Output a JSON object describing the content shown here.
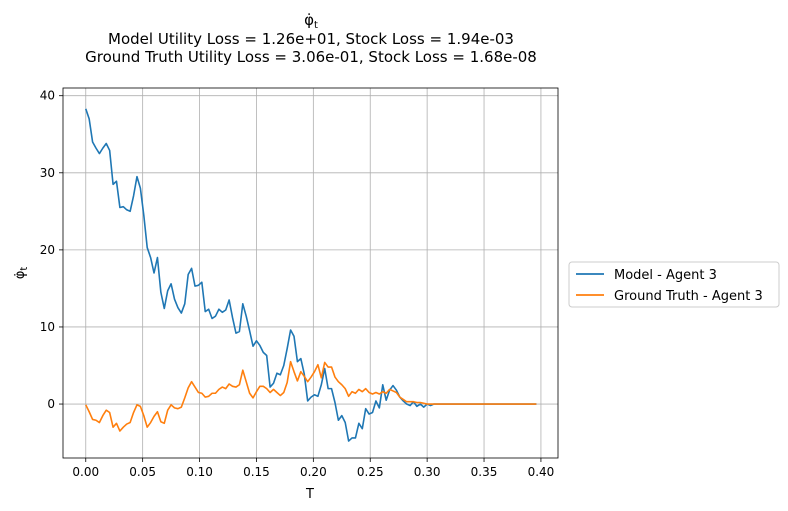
{
  "chart_data": {
    "type": "line",
    "title": {
      "main": "φ̇",
      "main_sub": "t",
      "line2": "Model Utility Loss = 1.26e+01, Stock Loss = 1.94e-03",
      "line3": "Ground Truth Utility Loss = 3.06e-01, Stock Loss = 1.68e-08"
    },
    "xlabel": "T",
    "ylabel": "φ̇",
    "ylabel_sub": "t",
    "xlim": [
      -0.02,
      0.415
    ],
    "ylim": [
      -7,
      41
    ],
    "xticks": [
      0.0,
      0.05,
      0.1,
      0.15,
      0.2,
      0.25,
      0.3,
      0.35,
      0.4
    ],
    "xtick_labels": [
      "0.00",
      "0.05",
      "0.10",
      "0.15",
      "0.20",
      "0.25",
      "0.30",
      "0.35",
      "0.40"
    ],
    "yticks": [
      0,
      10,
      20,
      30,
      40
    ],
    "ytick_labels": [
      "0",
      "10",
      "20",
      "30",
      "40"
    ],
    "grid": true,
    "legend_position": "right, outside",
    "x": [
      0.0,
      0.003,
      0.006,
      0.009,
      0.012,
      0.015,
      0.018,
      0.021,
      0.024,
      0.027,
      0.03,
      0.033,
      0.036,
      0.039,
      0.042,
      0.045,
      0.048,
      0.051,
      0.054,
      0.057,
      0.06,
      0.063,
      0.066,
      0.069,
      0.072,
      0.075,
      0.078,
      0.081,
      0.084,
      0.087,
      0.09,
      0.093,
      0.096,
      0.099,
      0.102,
      0.105,
      0.108,
      0.111,
      0.114,
      0.117,
      0.12,
      0.123,
      0.126,
      0.129,
      0.132,
      0.135,
      0.138,
      0.141,
      0.144,
      0.147,
      0.15,
      0.153,
      0.156,
      0.159,
      0.162,
      0.165,
      0.168,
      0.171,
      0.174,
      0.177,
      0.18,
      0.183,
      0.186,
      0.189,
      0.192,
      0.195,
      0.198,
      0.201,
      0.204,
      0.207,
      0.21,
      0.213,
      0.216,
      0.219,
      0.222,
      0.225,
      0.228,
      0.231,
      0.234,
      0.237,
      0.24,
      0.243,
      0.246,
      0.249,
      0.252,
      0.255,
      0.258,
      0.261,
      0.264,
      0.267,
      0.27,
      0.273,
      0.276,
      0.279,
      0.282,
      0.285,
      0.288,
      0.291,
      0.294,
      0.297,
      0.3,
      0.303,
      0.306,
      0.309,
      0.312,
      0.315,
      0.318,
      0.321,
      0.324,
      0.327,
      0.33,
      0.333,
      0.336,
      0.339,
      0.342,
      0.345,
      0.348,
      0.351,
      0.354,
      0.357,
      0.36,
      0.363,
      0.366,
      0.369,
      0.372,
      0.375,
      0.378,
      0.381,
      0.384,
      0.387,
      0.39,
      0.393,
      0.396
    ],
    "series": [
      {
        "name": "Model - Agent 3",
        "color": "#1f77b4",
        "values": [
          38.3,
          37.0,
          34.0,
          33.2,
          32.5,
          33.2,
          33.8,
          32.9,
          28.5,
          28.9,
          25.5,
          25.6,
          25.2,
          25.0,
          27.0,
          29.5,
          28.0,
          24.5,
          20.3,
          19.0,
          17.0,
          19.0,
          14.5,
          12.4,
          14.7,
          15.6,
          13.6,
          12.5,
          11.8,
          13.0,
          16.8,
          17.6,
          15.3,
          15.4,
          15.8,
          12.0,
          12.3,
          11.1,
          11.4,
          12.3,
          11.9,
          12.2,
          13.5,
          11.2,
          9.2,
          9.4,
          13.0,
          11.4,
          9.5,
          7.5,
          8.2,
          7.6,
          6.7,
          6.3,
          2.2,
          2.7,
          4.0,
          3.8,
          5.0,
          7.2,
          9.6,
          8.8,
          5.5,
          5.9,
          3.9,
          0.4,
          0.9,
          1.2,
          1.0,
          2.5,
          4.6,
          2.0,
          2.0,
          0.2,
          -2.1,
          -1.5,
          -2.4,
          -4.8,
          -4.4,
          -4.4,
          -2.5,
          -3.2,
          -0.6,
          -1.3,
          -1.1,
          0.4,
          -0.5,
          2.5,
          0.5,
          1.8,
          2.4,
          1.8,
          0.9,
          0.4,
          0.0,
          -0.2,
          0.3,
          -0.3,
          0.0,
          -0.4,
          0.0,
          -0.2,
          0.0,
          0.0,
          0.0,
          0.0,
          0.0,
          0.0,
          0.0,
          0.0,
          0.0,
          0.0,
          0.0,
          0.0,
          0.0,
          0.0,
          0.0,
          0.0,
          0.0,
          0.0,
          0.0,
          0.0,
          0.0,
          0.0,
          0.0,
          0.0,
          0.0,
          0.0,
          0.0,
          0.0,
          0.0,
          0.0,
          0.0
        ]
      },
      {
        "name": "Ground Truth - Agent 3",
        "color": "#ff7f0e",
        "values": [
          -0.1,
          -1.0,
          -2.0,
          -2.1,
          -2.4,
          -1.5,
          -0.8,
          -1.1,
          -3.0,
          -2.5,
          -3.5,
          -3.0,
          -2.6,
          -2.4,
          -1.1,
          -0.1,
          -0.3,
          -1.5,
          -3.0,
          -2.4,
          -1.6,
          -1.0,
          -2.3,
          -2.5,
          -0.8,
          -0.1,
          -0.5,
          -0.6,
          -0.4,
          0.8,
          2.1,
          2.9,
          2.2,
          1.5,
          1.4,
          0.9,
          1.0,
          1.4,
          1.4,
          1.9,
          2.2,
          2.0,
          2.6,
          2.3,
          2.2,
          2.5,
          4.4,
          2.9,
          1.4,
          0.8,
          1.6,
          2.3,
          2.3,
          2.0,
          1.5,
          1.9,
          1.5,
          1.1,
          1.5,
          2.8,
          5.5,
          4.2,
          3.0,
          4.2,
          3.6,
          2.9,
          3.5,
          4.2,
          5.1,
          3.4,
          5.4,
          4.8,
          4.8,
          3.5,
          2.9,
          2.5,
          2.0,
          1.0,
          1.6,
          1.4,
          1.9,
          1.6,
          2.0,
          1.5,
          1.3,
          1.5,
          1.3,
          1.6,
          1.4,
          1.9,
          1.7,
          1.5,
          0.9,
          0.6,
          0.3,
          0.3,
          0.3,
          0.2,
          0.2,
          0.1,
          0.0,
          0.0,
          0.0,
          0.0,
          0.0,
          0.0,
          0.0,
          0.0,
          0.0,
          0.0,
          0.0,
          0.0,
          0.0,
          0.0,
          0.0,
          0.0,
          0.0,
          0.0,
          0.0,
          0.0,
          0.0,
          0.0,
          0.0,
          0.0,
          0.0,
          0.0,
          0.0,
          0.0,
          0.0,
          0.0,
          0.0,
          0.0,
          0.0
        ]
      }
    ]
  }
}
